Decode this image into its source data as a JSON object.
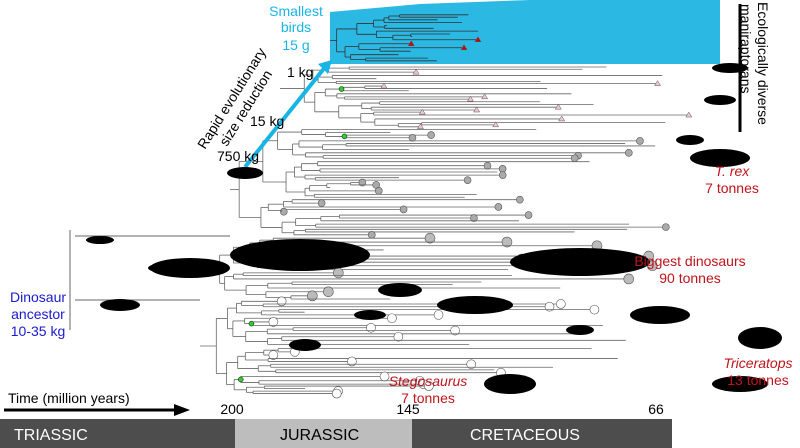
{
  "labels": {
    "smallest_birds": {
      "line1": "Smallest",
      "line2": "birds",
      "line3": "15 g"
    },
    "maniraptorans": {
      "line1": "Ecologically diverse",
      "line2": "maniraptorans"
    },
    "size_reduction": {
      "line1": "Rapid evolutionary",
      "line2": "size reduction"
    },
    "mass_1kg": "1 kg",
    "mass_15kg": "15 kg",
    "mass_750kg": "750 kg",
    "trex": {
      "name": "T. rex",
      "mass": "7 tonnes"
    },
    "biggest": {
      "name": "Biggest dinosaurs",
      "mass": "90 tonnes"
    },
    "ancestor": {
      "line1": "Dinosaur",
      "line2": "ancestor",
      "line3": "10-35 kg"
    },
    "triceratops": {
      "name": "Triceratops",
      "mass": "13 tonnes"
    },
    "stegosaurus": {
      "name": "Stegosaurus",
      "mass": "7 tonnes"
    }
  },
  "timeline": {
    "title": "Time (million years)",
    "ticks": [
      "200",
      "145",
      "66"
    ],
    "periods": [
      "TRIASSIC",
      "JURASSIC",
      "CRETACEOUS"
    ]
  }
}
